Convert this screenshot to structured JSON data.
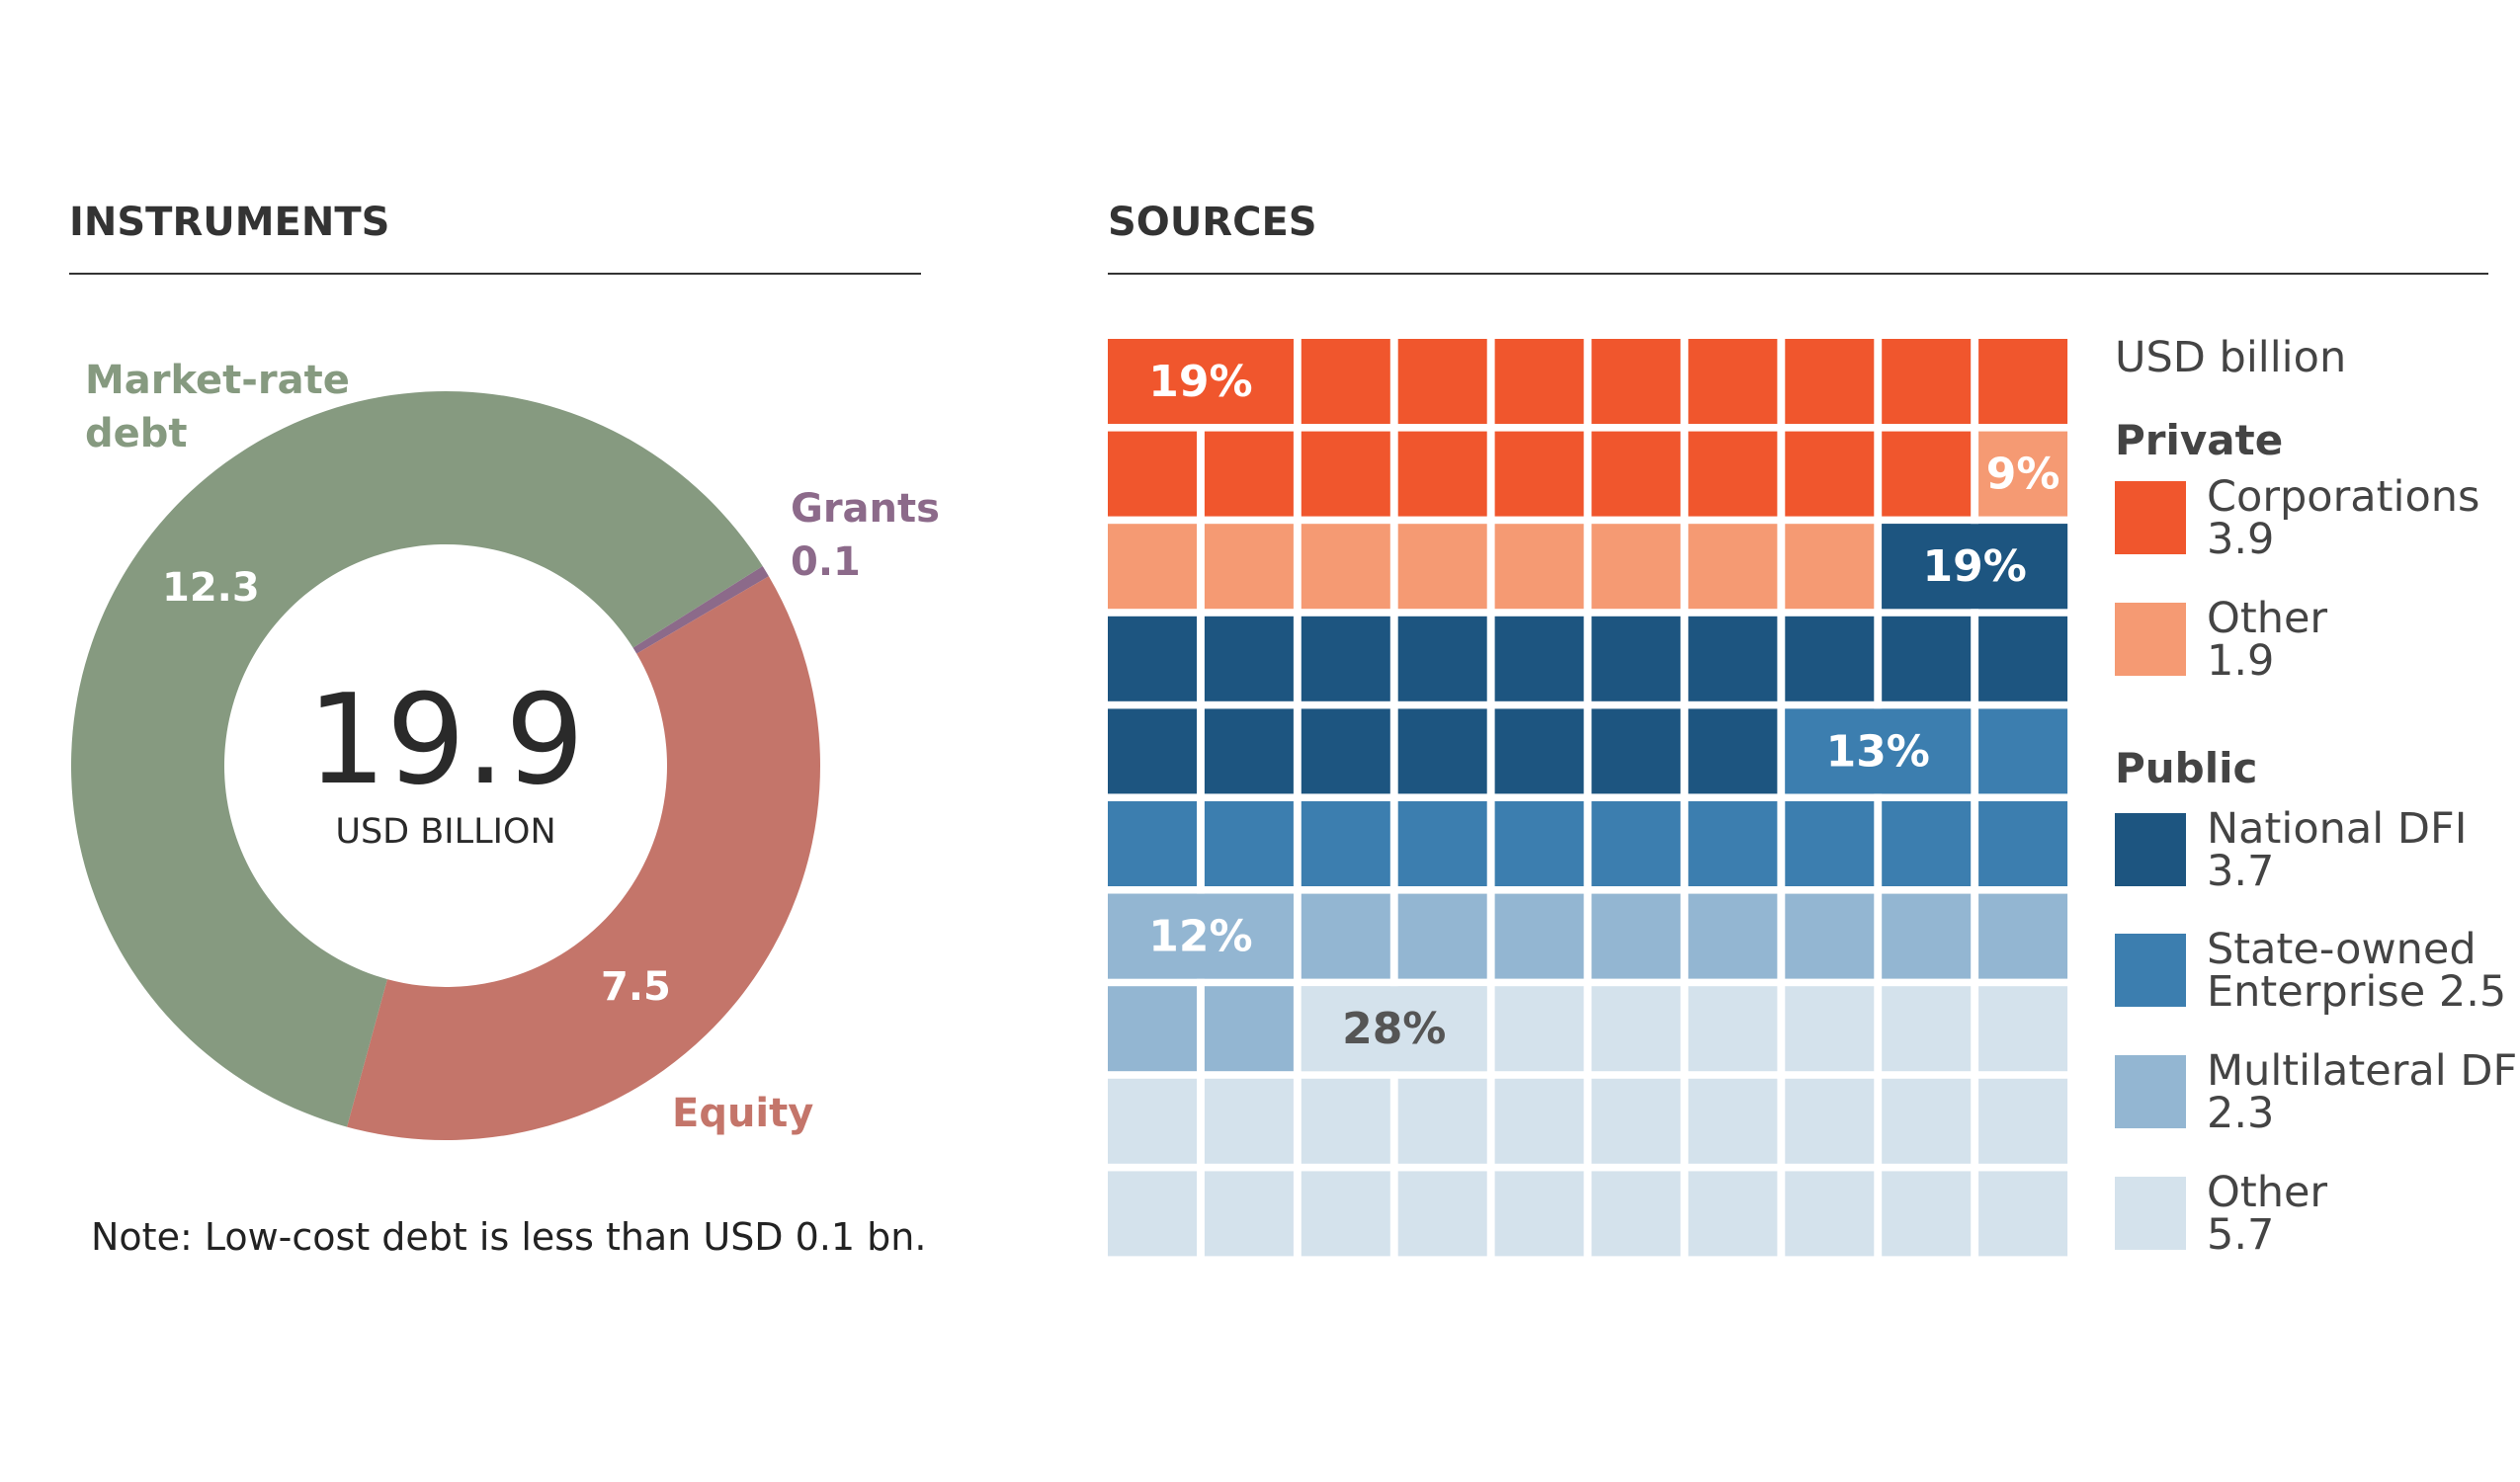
{
  "chart_data": [
    {
      "type": "pie",
      "title": "INSTRUMENTS",
      "center_value": "19.9",
      "center_label": "USD BILLION",
      "slices": [
        {
          "name": "Grants",
          "value": 0.1,
          "value_label": "0.1",
          "color": "#8C6A8A"
        },
        {
          "name": "Equity",
          "value": 7.5,
          "value_label": "7.5",
          "color": "#C4756A"
        },
        {
          "name": "Market-rate debt",
          "name_lines": [
            "Market-rate",
            "debt"
          ],
          "value": 12.3,
          "value_label": "12.3",
          "color": "#869A80"
        }
      ],
      "note": "Note: Low-cost debt is less than USD 0.1 bn."
    },
    {
      "type": "waffle",
      "title": "SOURCES",
      "unit": "USD billion",
      "grid": [
        10,
        10
      ],
      "groups": [
        {
          "heading": "Private",
          "items": [
            {
              "name": "Corporations",
              "name_lines": [
                "Corporations",
                "3.9"
              ],
              "value": 3.9,
              "percent": 19,
              "percent_label": "19%",
              "color": "#F0562D"
            },
            {
              "name": "Other",
              "name_lines": [
                "Other",
                "1.9"
              ],
              "value": 1.9,
              "percent": 9,
              "percent_label": "9%",
              "color": "#F59A73"
            }
          ]
        },
        {
          "heading": "Public",
          "items": [
            {
              "name": "National DFI",
              "name_lines": [
                "National DFI",
                "3.7"
              ],
              "value": 3.7,
              "percent": 19,
              "percent_label": "19%",
              "color": "#1D5580"
            },
            {
              "name": "State-owned Enterprise",
              "name_lines": [
                "State-owned",
                "Enterprise 2.5"
              ],
              "value": 2.5,
              "percent": 13,
              "percent_label": "13%",
              "color": "#3C7EAF"
            },
            {
              "name": "Multilateral DFI",
              "name_lines": [
                "Multilateral DFI",
                "2.3"
              ],
              "value": 2.3,
              "percent": 12,
              "percent_label": "12%",
              "color": "#93B6D2"
            },
            {
              "name": "Other",
              "name_lines": [
                "Other",
                "5.7"
              ],
              "value": 5.7,
              "percent": 28,
              "percent_label": "28%",
              "color": "#D4E2EC"
            }
          ]
        }
      ]
    }
  ]
}
